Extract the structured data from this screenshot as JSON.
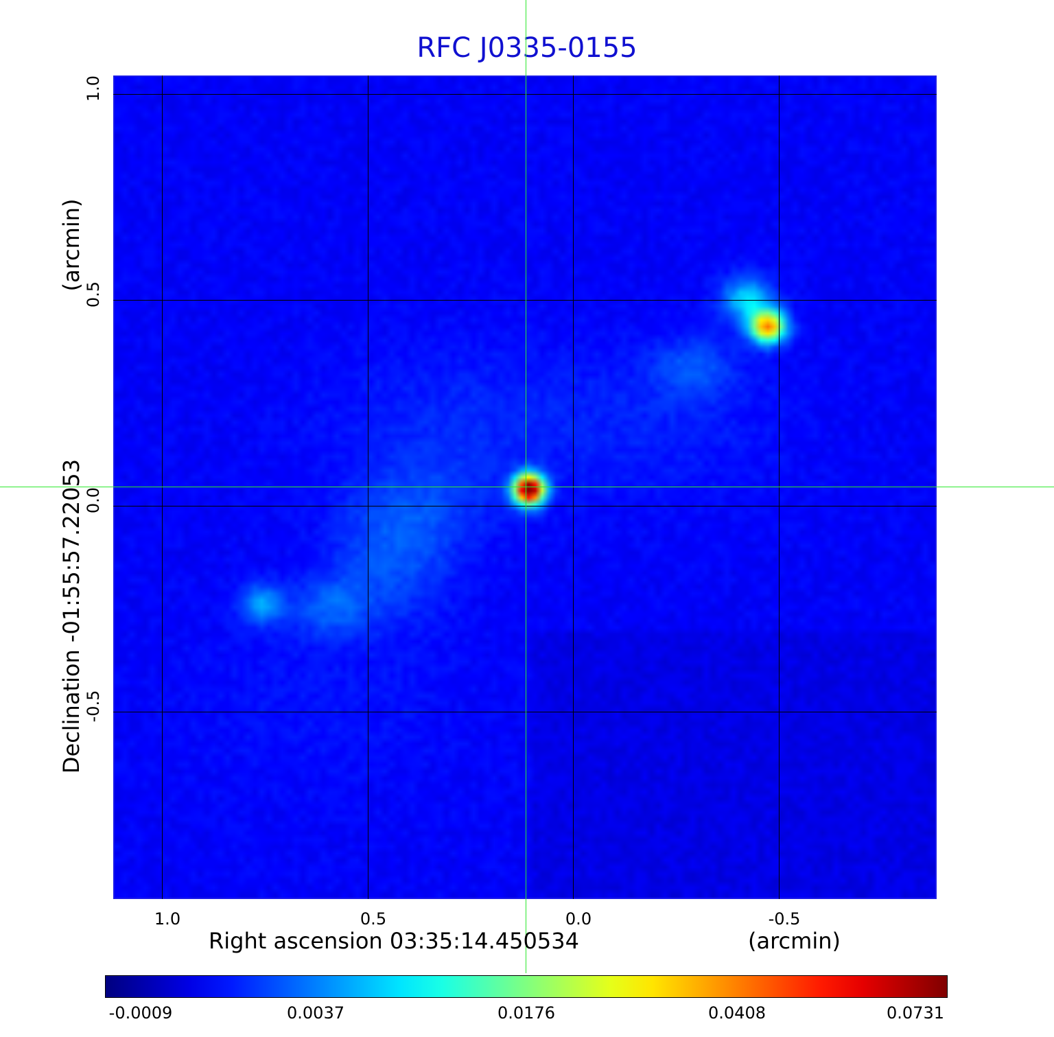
{
  "title": "RFC J0335-0155",
  "x_axis": {
    "label": "Right ascension  03:35:14.450534",
    "unit": "(arcmin)",
    "ticks": [
      "1.0",
      "0.5",
      "0.0",
      "-0.5"
    ]
  },
  "y_axis": {
    "label": "Declination  -01:55:57.22053",
    "unit": "(arcmin)",
    "ticks": [
      "1.0",
      "0.5",
      "0.0",
      "-0.5"
    ]
  },
  "colorbar": {
    "colormap": "jet",
    "ticks": [
      "-0.0009",
      "0.0037",
      "0.0176",
      "0.0408",
      "0.0731"
    ]
  },
  "colors": {
    "title": "#1010d0",
    "crosshair": "#2ee82e",
    "grid": "#000000",
    "frame": "#1b1be8"
  }
}
